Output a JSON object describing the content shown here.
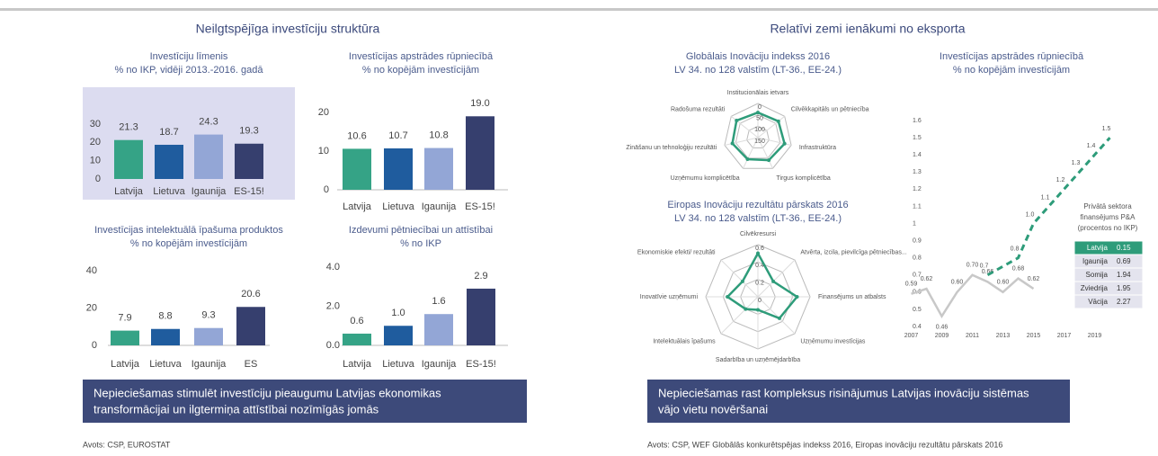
{
  "sections": [
    {
      "title": "Neilgtspējīga investīciju struktūra",
      "banner": [
        "Nepieciešamas stimulēt investīciju pieaugumu Latvijas ekonomikas",
        "transformācijai un ilgtermiņa attīstībai nozīmīgās jomās"
      ],
      "source": "Avots: CSP, EUROSTAT"
    },
    {
      "title": "Relatīvi zemi ienākumi no eksporta",
      "banner": [
        "Nepieciešamas rast kompleksus risinājumus Latvijas inovāciju sistēmas",
        "vājo vietu novēršanai"
      ],
      "source": "Avots: CSP, WEF Globālās konkurētspējas indekss 2016, Eiropas inovāciju rezultātu pārskats 2016"
    }
  ],
  "chart_data": [
    {
      "type": "bar",
      "title": "Investīciju līmenis",
      "subtitle": "% no IKP, vidēji 2013.-2016. gadā",
      "categories": [
        "Latvija",
        "Lietuva",
        "Igaunija",
        "ES-15!"
      ],
      "values": [
        21.3,
        18.7,
        24.3,
        19.3
      ],
      "colors": [
        "#35a386",
        "#1f5c9e",
        "#93a6d6",
        "#363f6e"
      ],
      "ylim": [
        0,
        30
      ],
      "yticks": [
        0,
        10,
        20,
        30
      ]
    },
    {
      "type": "bar",
      "title": "Investīcijas apstrādes rūpniecībā",
      "subtitle": "% no kopējām investīcijām",
      "categories": [
        "Latvija",
        "Lietuva",
        "Igaunija",
        "ES-15!"
      ],
      "values": [
        10.6,
        10.7,
        10.8,
        19.0
      ],
      "value_labels": [
        "10.6",
        "10.7",
        "10.8",
        "19.0"
      ],
      "colors": [
        "#35a386",
        "#1f5c9e",
        "#93a6d6",
        "#363f6e"
      ],
      "ylim": [
        0,
        20
      ],
      "yticks": [
        0,
        10,
        20
      ]
    },
    {
      "type": "bar",
      "title": "Investīcijas intelektuālā īpašuma produktos",
      "subtitle": "% no kopējām investīcijām",
      "categories": [
        "Latvija",
        "Lietuva",
        "Igaunija",
        "ES"
      ],
      "values": [
        7.9,
        8.8,
        9.3,
        20.6
      ],
      "colors": [
        "#35a386",
        "#1f5c9e",
        "#93a6d6",
        "#363f6e"
      ],
      "ylim": [
        0,
        40
      ],
      "yticks": [
        0,
        20,
        40
      ]
    },
    {
      "type": "bar",
      "title": "Izdevumi pētniecībai un attīstībai",
      "subtitle": "% no IKP",
      "categories": [
        "Latvija",
        "Lietuva",
        "Igaunija",
        "ES-15!"
      ],
      "values": [
        0.6,
        1.0,
        1.6,
        2.9
      ],
      "value_labels": [
        "0.6",
        "1.0",
        "1.6",
        "2.9"
      ],
      "colors": [
        "#35a386",
        "#1f5c9e",
        "#93a6d6",
        "#363f6e"
      ],
      "ylim": [
        0,
        4
      ],
      "yticks": [
        {
          "value": 0,
          "label": "0.0"
        },
        {
          "value": 2,
          "label": "2.0"
        },
        {
          "value": 4,
          "label": "4.0"
        }
      ]
    },
    {
      "type": "radar",
      "title": "Globālais Inovāciju indekss 2016",
      "subtitle": "LV 34. no 128 valstīm (LT-36., EE-24.)",
      "axes": [
        "Institucionālais ietvars",
        "Cilvēkkapitāls un pētniecība",
        "Infrastruktūra",
        "Tirgus komplicētība",
        "Uzņēmumu komplicētība",
        "Zināšanu un tehnoloģiju rezultāti",
        "Radošuma rezultāti"
      ],
      "values": [
        40,
        35,
        30,
        40,
        45,
        35,
        30
      ],
      "color": "#2e9c7a",
      "rlim": [
        150,
        0
      ],
      "rticks": [
        0,
        50,
        100,
        150
      ]
    },
    {
      "type": "radar",
      "title": "Eiropas Inovāciju rezultātu pārskats 2016",
      "subtitle": "LV 34. no 128 valstīm (LT-36., EE-24.)",
      "axes": [
        "Cilvēkresursi",
        "Atvērta, izcila, pievilcīga pētniecības...",
        "Finansējums un atbalsts",
        "Uzņēmumu investīcijas",
        "Sadarbība un uzņēmējdarbība",
        "Intelektuālais īpašums",
        "Inovatīvie uzņēmumi",
        "Ekonomiskie efekti/ rezultāti"
      ],
      "values": [
        0.5,
        0.25,
        0.45,
        0.35,
        0.15,
        0.2,
        0.35,
        0.25
      ],
      "color": "#2e9c7a",
      "rlim": [
        0,
        0.6
      ],
      "rticks": [
        0,
        0.2,
        0.4,
        0.6
      ]
    },
    {
      "type": "line",
      "title": "Investīcijas apstrādes rūpniecībā",
      "subtitle": "% no kopējām investīcijām",
      "xlim": [
        2006.5,
        2020.5
      ],
      "xticks": [
        2007,
        2009,
        2011,
        2013,
        2015,
        2017,
        2019
      ],
      "ylim": [
        0.4,
        1.6
      ],
      "yticks": [
        0.4,
        0.5,
        0.6,
        0.7,
        0.8,
        0.9,
        1,
        1.1,
        1.2,
        1.3,
        1.4,
        1.5,
        1.6
      ],
      "series": [
        {
          "color": "#c8c8c8",
          "dashed": false,
          "x": [
            2007,
            2008,
            2009,
            2010,
            2011,
            2012,
            2013,
            2014,
            2015
          ],
          "values": [
            0.59,
            0.62,
            0.46,
            0.6,
            0.7,
            0.66,
            0.6,
            0.68,
            0.62
          ],
          "value_labels": [
            "0.59",
            "0.62",
            "0.46",
            "0.60",
            "0.70",
            "0.66",
            "0.60",
            "0.68",
            "0.62"
          ]
        },
        {
          "color": "#2e9c7a",
          "dashed": true,
          "x": [
            2012,
            2014,
            2015,
            2016,
            2017,
            2018,
            2019,
            2020
          ],
          "values": [
            0.7,
            0.8,
            1.0,
            1.1,
            1.2,
            1.3,
            1.4,
            1.5
          ],
          "value_labels": [
            "0.7",
            "0.8",
            "1.0",
            "1.1",
            "1.2",
            "1.3",
            "1.4",
            "1.5"
          ]
        }
      ]
    }
  ],
  "table": {
    "title": [
      "Privātā sektora",
      "finansējums P&A",
      "(procentos no IKP)"
    ],
    "rows": [
      [
        "Latvija",
        "0.15"
      ],
      [
        "Igaunija",
        "0.69"
      ],
      [
        "Somija",
        "1.94"
      ],
      [
        "Zviedrija",
        "1.95"
      ],
      [
        "Vācija",
        "2.27"
      ]
    ],
    "highlight_row": 0
  }
}
